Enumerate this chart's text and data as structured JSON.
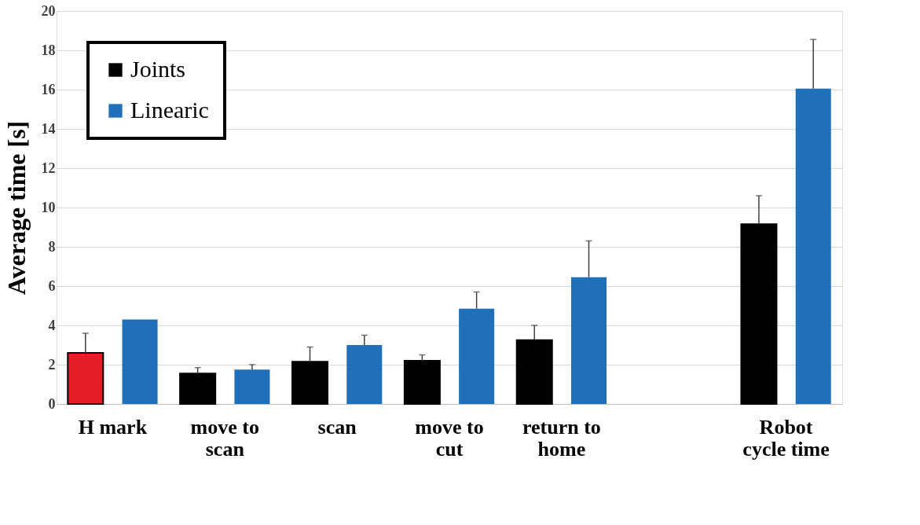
{
  "chart_data": {
    "type": "bar",
    "ylabel": "Average time [s]",
    "categories": [
      "H mark",
      "move to scan",
      "scan",
      "move to cut",
      "return to home",
      null,
      "Robot cycle time"
    ],
    "series": [
      {
        "name": "Joints",
        "color": "#000000",
        "colors": [
          "#e31e24",
          "#000000",
          "#000000",
          "#000000",
          "#000000",
          "#000000",
          "#000000"
        ],
        "values": [
          2.6,
          1.55,
          2.15,
          2.2,
          3.25,
          null,
          9.15
        ],
        "errors": [
          [
            2.6,
            3.6
          ],
          [
            1.55,
            1.85
          ],
          [
            2.15,
            2.9
          ],
          [
            2.2,
            2.5
          ],
          [
            3.25,
            4.0
          ],
          null,
          [
            9.15,
            10.6
          ]
        ]
      },
      {
        "name": "Linearic",
        "color": "#1f70b8",
        "values": [
          4.3,
          1.75,
          3.0,
          4.85,
          6.45,
          null,
          16.05
        ],
        "errors": [
          null,
          [
            1.75,
            2.0
          ],
          [
            3.0,
            3.5
          ],
          [
            4.85,
            5.7
          ],
          [
            6.45,
            8.3
          ],
          null,
          [
            16.05,
            18.55
          ]
        ]
      }
    ],
    "ylim": [
      0,
      20
    ],
    "yticks": [
      0,
      2,
      4,
      6,
      8,
      10,
      12,
      14,
      16,
      18,
      20
    ],
    "grid": "y",
    "legend": "top left"
  }
}
